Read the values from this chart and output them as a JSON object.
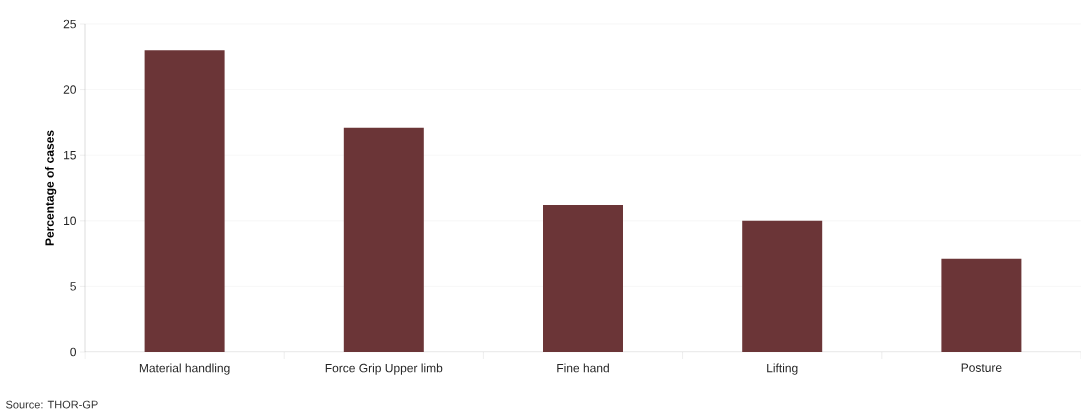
{
  "chart_data": {
    "type": "bar",
    "ylabel": "Percentage of cases",
    "categories": [
      "Material handling",
      "Force Grip Upper limb",
      "Fine hand",
      "Lifting",
      "Posture"
    ],
    "values": [
      23,
      17.1,
      11.2,
      10,
      7.1
    ],
    "color": "#6b3537",
    "ylim": [
      0,
      25
    ],
    "yticks": [
      0,
      5,
      10,
      15,
      20,
      25
    ],
    "grid": "y",
    "annotations": [
      "Source: THOR-GP"
    ]
  }
}
